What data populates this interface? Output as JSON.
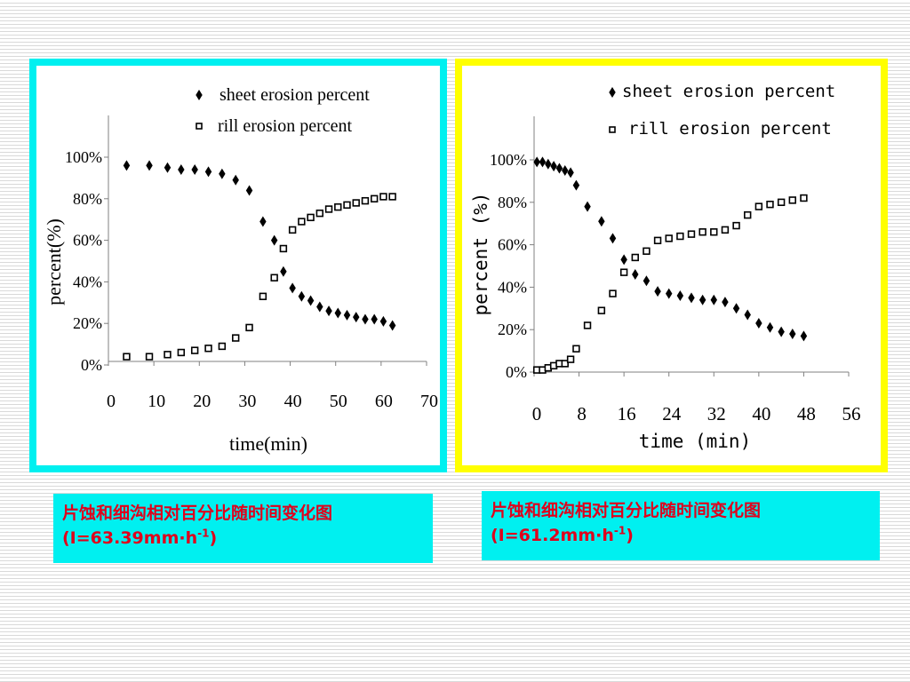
{
  "chart_data": [
    {
      "type": "scatter",
      "legend": {
        "placement": "top-right",
        "entries": [
          "sheet erosion percent",
          "rill erosion percent"
        ]
      },
      "xlabel": "time(min)",
      "ylabel": "percent(%)",
      "xlim": [
        0,
        70
      ],
      "ylim": [
        0,
        100
      ],
      "x_ticks": [
        "0",
        "10",
        "20",
        "30",
        "40",
        "50",
        "60",
        "70"
      ],
      "y_ticks": [
        "0%",
        "20%",
        "40%",
        "60%",
        "80%",
        "100%"
      ],
      "grid": false,
      "series": [
        {
          "name": "sheet erosion percent",
          "marker": "diamond",
          "color": "#000000",
          "x": [
            4,
            9,
            13,
            16,
            19,
            22,
            25,
            28,
            31,
            34,
            36.5,
            38.5,
            40.5,
            42.5,
            44.5,
            46.5,
            48.5,
            50.5,
            52.5,
            54.5,
            56.5,
            58.5,
            60.5,
            62.5
          ],
          "y": [
            96,
            96,
            95,
            94,
            94,
            93,
            92,
            89,
            84,
            69,
            60,
            45,
            37,
            33,
            31,
            28,
            26,
            25,
            24,
            23,
            22,
            22,
            21,
            19
          ]
        },
        {
          "name": "rill erosion percent",
          "marker": "square",
          "color": "#000000",
          "x": [
            4,
            9,
            13,
            16,
            19,
            22,
            25,
            28,
            31,
            34,
            36.5,
            38.5,
            40.5,
            42.5,
            44.5,
            46.5,
            48.5,
            50.5,
            52.5,
            54.5,
            56.5,
            58.5,
            60.5,
            62.5
          ],
          "y": [
            4,
            4,
            5,
            6,
            7,
            8,
            9,
            13,
            18,
            33,
            42,
            56,
            65,
            69,
            71,
            73,
            75,
            76,
            77,
            78,
            79,
            80,
            81,
            81
          ]
        }
      ]
    },
    {
      "type": "scatter",
      "legend": {
        "placement": "top-right",
        "entries": [
          "sheet erosion percent",
          "rill erosion percent"
        ]
      },
      "xlabel": "time (min)",
      "ylabel": "percent  (%)",
      "xlim": [
        0,
        56
      ],
      "ylim": [
        0,
        100
      ],
      "x_ticks": [
        "0",
        "8",
        "16",
        "24",
        "32",
        "40",
        "48",
        "56"
      ],
      "y_ticks": [
        "0%",
        "20%",
        "40%",
        "60%",
        "80%",
        "100%"
      ],
      "grid": false,
      "series": [
        {
          "name": "sheet erosion percent",
          "marker": "diamond",
          "color": "#000000",
          "x": [
            0.5,
            1.5,
            2.5,
            3.5,
            4.5,
            5.5,
            6.5,
            7.5,
            9.5,
            12,
            14,
            16,
            18,
            20,
            22,
            24,
            26,
            28,
            30,
            32,
            34,
            36,
            38,
            40,
            42,
            44,
            46,
            48
          ],
          "y": [
            99,
            99,
            98,
            97,
            96,
            95,
            94,
            88,
            78,
            71,
            63,
            53,
            46,
            43,
            38,
            37,
            36,
            35,
            34,
            34,
            33,
            30,
            27,
            23,
            21,
            19,
            18,
            17
          ]
        },
        {
          "name": "rill erosion percent",
          "marker": "square",
          "color": "#000000",
          "x": [
            0.5,
            1.5,
            2.5,
            3.5,
            4.5,
            5.5,
            6.5,
            7.5,
            9.5,
            12,
            14,
            16,
            18,
            20,
            22,
            24,
            26,
            28,
            30,
            32,
            34,
            36,
            38,
            40,
            42,
            44,
            46,
            48
          ],
          "y": [
            1,
            1,
            2,
            3,
            4,
            4,
            6,
            11,
            22,
            29,
            37,
            47,
            54,
            57,
            62,
            63,
            64,
            65,
            66,
            66,
            67,
            69,
            74,
            78,
            79,
            80,
            81,
            82
          ]
        }
      ]
    }
  ],
  "captions": {
    "left": {
      "text": "片蚀和细沟相对百分比随时间变化图(I=63.39mm·h",
      "sup": "-1",
      "tail": ")"
    },
    "right": {
      "text": "片蚀和细沟相对百分比随时间变化图(I=61.2mm·h",
      "sup": "-1",
      "tail": ")"
    }
  }
}
